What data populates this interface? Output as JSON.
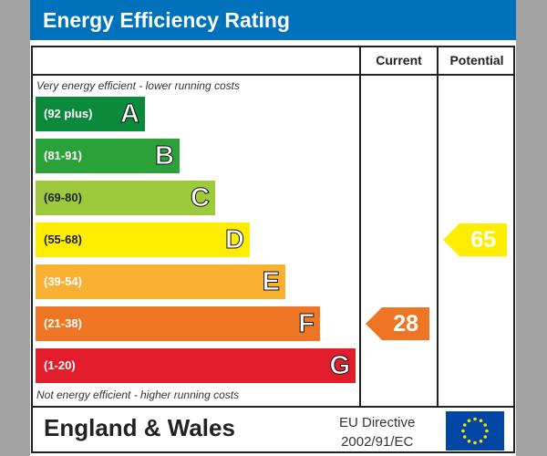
{
  "title": "Energy Efficiency Rating",
  "chart_data": {
    "type": "table",
    "title": "Energy Efficiency Rating",
    "columns": [
      "Current",
      "Potential"
    ],
    "top_note": "Very energy efficient - lower running costs",
    "bottom_note": "Not energy efficient - higher running costs",
    "bands": [
      {
        "letter": "A",
        "range": "(92 plus)",
        "color": "#0c8a3c"
      },
      {
        "letter": "B",
        "range": "(81-91)",
        "color": "#2aa239"
      },
      {
        "letter": "C",
        "range": "(69-80)",
        "color": "#9cca3c"
      },
      {
        "letter": "D",
        "range": "(55-68)",
        "color": "#ffed00"
      },
      {
        "letter": "E",
        "range": "(39-54)",
        "color": "#f8b133"
      },
      {
        "letter": "F",
        "range": "(21-38)",
        "color": "#ee7524"
      },
      {
        "letter": "G",
        "range": "(1-20)",
        "color": "#e31d2b"
      }
    ],
    "current": {
      "value": "28",
      "band": "F",
      "color": "#ee7524"
    },
    "potential": {
      "value": "65",
      "band": "D",
      "color": "#ffed00"
    }
  },
  "footer": {
    "region": "England & Wales",
    "directive_line1": "EU Directive",
    "directive_line2": "2002/91/EC"
  }
}
